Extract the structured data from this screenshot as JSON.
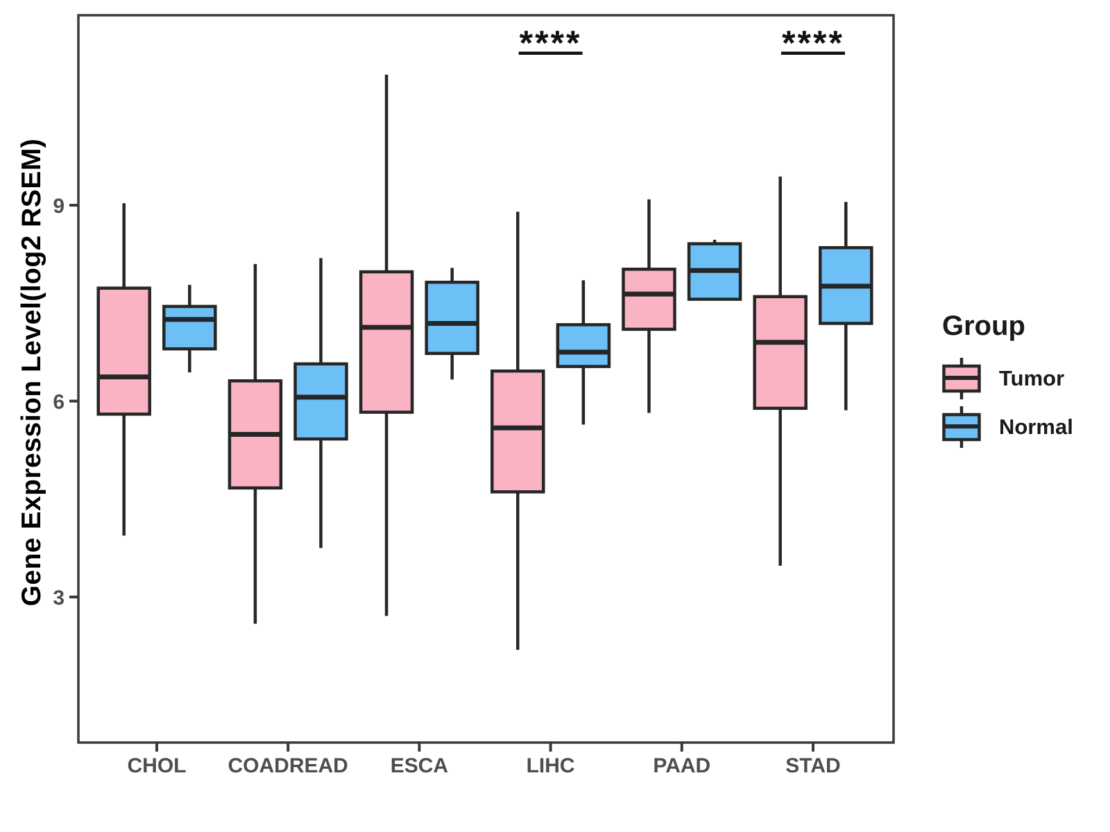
{
  "legend": {
    "title": "Group",
    "items": [
      {
        "label": "Tumor",
        "color": "#FAB3C2"
      },
      {
        "label": "Normal",
        "color": "#6DC0F6"
      }
    ]
  },
  "style_colors": {
    "box_edge": "#262626",
    "axis_border": "#3a3a3a",
    "tick_text": "#4d4d4d",
    "annotation": "#111111"
  },
  "chart_data": {
    "type": "boxplot",
    "title": "",
    "xlabel": "",
    "ylabel": "Gene Expression Level(log2 RSEM)",
    "yticks": [
      9,
      6,
      3
    ],
    "ylim": [
      0.8,
      11.9
    ],
    "grid": false,
    "legend_position": "right",
    "legend_title": "Group",
    "categories": [
      "CHOL",
      "COADREAD",
      "ESCA",
      "LIHC",
      "PAAD",
      "STAD"
    ],
    "series": [
      {
        "name": "Tumor",
        "color": "#FAB3C2",
        "stats": [
          {
            "min": 3.94,
            "q1": 5.8,
            "median": 6.37,
            "q3": 7.73,
            "max": 9.03
          },
          {
            "min": 2.59,
            "q1": 4.67,
            "median": 5.49,
            "q3": 6.31,
            "max": 8.1
          },
          {
            "min": 2.71,
            "q1": 5.83,
            "median": 7.13,
            "q3": 7.98,
            "max": 11.0
          },
          {
            "min": 2.19,
            "q1": 4.61,
            "median": 5.59,
            "q3": 6.46,
            "max": 8.9
          },
          {
            "min": 5.82,
            "q1": 7.1,
            "median": 7.64,
            "q3": 8.02,
            "max": 9.09
          },
          {
            "min": 3.48,
            "q1": 5.89,
            "median": 6.9,
            "q3": 7.6,
            "max": 9.44
          }
        ]
      },
      {
        "name": "Normal",
        "color": "#6DC0F6",
        "stats": [
          {
            "min": 6.44,
            "q1": 6.8,
            "median": 7.25,
            "q3": 7.45,
            "max": 7.78
          },
          {
            "min": 3.75,
            "q1": 5.42,
            "median": 6.06,
            "q3": 6.57,
            "max": 8.19
          },
          {
            "min": 6.33,
            "q1": 6.73,
            "median": 7.19,
            "q3": 7.82,
            "max": 8.04
          },
          {
            "min": 5.64,
            "q1": 6.53,
            "median": 6.75,
            "q3": 7.17,
            "max": 7.85
          },
          {
            "min": 7.56,
            "q1": 7.56,
            "median": 8.0,
            "q3": 8.41,
            "max": 8.47
          },
          {
            "min": 5.86,
            "q1": 7.19,
            "median": 7.76,
            "q3": 8.35,
            "max": 9.05
          }
        ]
      }
    ],
    "significance": [
      {
        "category": "LIHC",
        "label": "****"
      },
      {
        "category": "STAD",
        "label": "****"
      }
    ]
  }
}
